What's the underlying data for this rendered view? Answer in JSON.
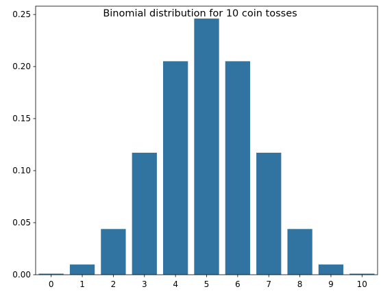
{
  "chart_data": {
    "type": "bar",
    "title": "Binomial distribution for 10 coin tosses",
    "xlabel": "",
    "ylabel": "",
    "categories": [
      "0",
      "1",
      "2",
      "3",
      "4",
      "5",
      "6",
      "7",
      "8",
      "9",
      "10"
    ],
    "values": [
      0.001,
      0.0098,
      0.0439,
      0.1172,
      0.2051,
      0.2461,
      0.2051,
      0.1172,
      0.0439,
      0.0098,
      0.001
    ],
    "ylim": [
      0,
      0.258
    ],
    "yticks": [
      0.0,
      0.05,
      0.1,
      0.15,
      0.2,
      0.25
    ],
    "ytick_labels": [
      "0.00",
      "0.05",
      "0.10",
      "0.15",
      "0.20",
      "0.25"
    ],
    "grid": false,
    "legend": "none",
    "bar_color": "#3274a1"
  }
}
